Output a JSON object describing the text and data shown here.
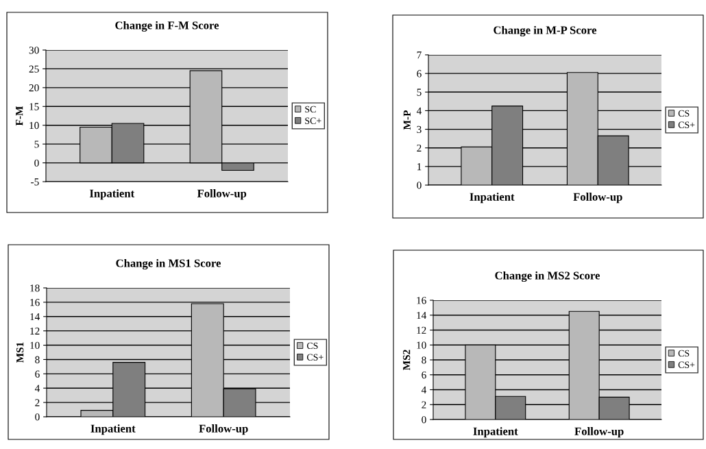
{
  "chart_data": [
    {
      "type": "bar",
      "title": "Change in F-M Score",
      "ylabel": "F-M",
      "categories": [
        "Inpatient",
        "Follow-up"
      ],
      "ylim": [
        -5,
        30
      ],
      "yticks": [
        -5,
        0,
        5,
        10,
        15,
        20,
        25,
        30
      ],
      "grid": "y",
      "legend": "right",
      "series": [
        {
          "name": "SC",
          "color": "#b8b8b8",
          "values": [
            9.5,
            24.5
          ]
        },
        {
          "name": "SC+",
          "color": "#7f7f7f",
          "values": [
            10.5,
            -2
          ]
        }
      ]
    },
    {
      "type": "bar",
      "title": "Change in M-P Score",
      "ylabel": "M-P",
      "categories": [
        "Inpatient",
        "Follow-up"
      ],
      "ylim": [
        0,
        7
      ],
      "yticks": [
        0,
        1,
        2,
        3,
        4,
        5,
        6,
        7
      ],
      "grid": "y",
      "legend": "right",
      "series": [
        {
          "name": "CS",
          "color": "#b8b8b8",
          "values": [
            2.05,
            6.05
          ]
        },
        {
          "name": "CS+",
          "color": "#7f7f7f",
          "values": [
            4.25,
            2.65
          ]
        }
      ]
    },
    {
      "type": "bar",
      "title": "Change in MS1 Score",
      "ylabel": "MS1",
      "categories": [
        "Inpatient",
        "Follow-up"
      ],
      "ylim": [
        0,
        18
      ],
      "yticks": [
        0,
        2,
        4,
        6,
        8,
        10,
        12,
        14,
        16,
        18
      ],
      "grid": "y",
      "legend": "right",
      "series": [
        {
          "name": "CS",
          "color": "#b8b8b8",
          "values": [
            0.9,
            15.8
          ]
        },
        {
          "name": "CS+",
          "color": "#7f7f7f",
          "values": [
            7.6,
            3.9
          ]
        }
      ]
    },
    {
      "type": "bar",
      "title": "Change in MS2 Score",
      "ylabel": "MS2",
      "categories": [
        "Inpatient",
        "Follow-up"
      ],
      "ylim": [
        0,
        16
      ],
      "yticks": [
        0,
        2,
        4,
        6,
        8,
        10,
        12,
        14,
        16
      ],
      "grid": "y",
      "legend": "right",
      "series": [
        {
          "name": "CS",
          "color": "#b8b8b8",
          "values": [
            10,
            14.5
          ]
        },
        {
          "name": "CS+",
          "color": "#7f7f7f",
          "values": [
            3.1,
            3.0
          ]
        }
      ]
    }
  ]
}
